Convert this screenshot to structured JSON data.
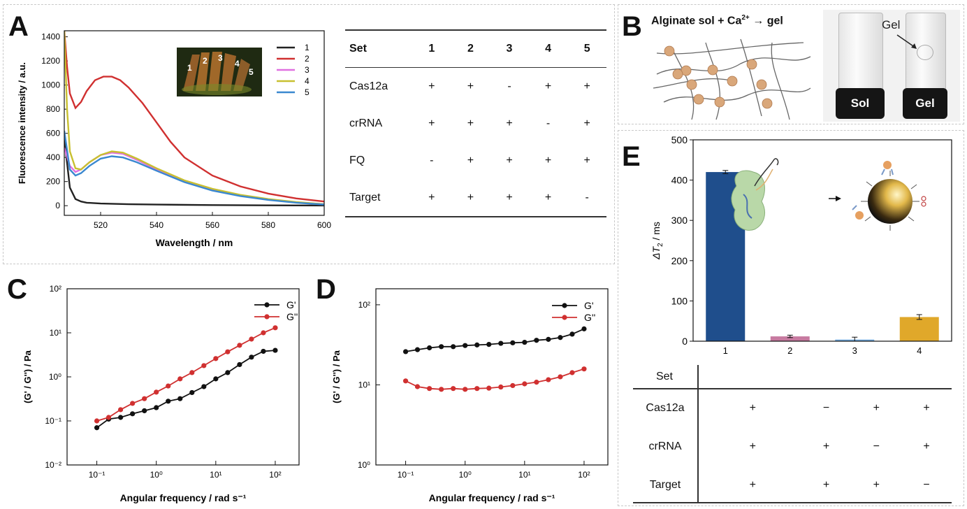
{
  "panels": {
    "A": {
      "label": "A",
      "chart": {
        "type": "line",
        "title": "",
        "xlabel": "Wavelength / nm",
        "ylabel": "Fluorescence intensity / a.u.",
        "xlim": [
          507,
          600
        ],
        "ylim": [
          -80,
          1450
        ],
        "xticks": [
          520,
          540,
          560,
          580,
          600
        ],
        "yticks": [
          0,
          200,
          400,
          600,
          800,
          1000,
          1200,
          1400
        ],
        "legend_position": "top-right",
        "series": [
          {
            "name": "1",
            "color": "#222222",
            "x": [
              507,
              509,
              511,
              513,
              515,
              520,
              530,
              540,
              560,
              580,
              600
            ],
            "y": [
              560,
              150,
              55,
              35,
              25,
              18,
              12,
              9,
              5,
              3,
              2
            ]
          },
          {
            "name": "2",
            "color": "#d03030",
            "x": [
              507,
              508,
              509,
              511,
              513,
              515,
              518,
              521,
              524,
              527,
              530,
              535,
              540,
              545,
              550,
              560,
              570,
              580,
              590,
              600
            ],
            "y": [
              1450,
              1150,
              930,
              810,
              860,
              950,
              1040,
              1070,
              1070,
              1040,
              980,
              850,
              690,
              530,
              400,
              250,
              160,
              100,
              60,
              35
            ]
          },
          {
            "name": "3",
            "color": "#e070e0",
            "x": [
              507,
              509,
              511,
              513,
              516,
              520,
              524,
              528,
              533,
              540,
              550,
              560,
              570,
              580,
              590,
              600
            ],
            "y": [
              480,
              330,
              280,
              300,
              360,
              420,
              440,
              430,
              380,
              300,
              200,
              130,
              85,
              50,
              28,
              12
            ]
          },
          {
            "name": "4",
            "color": "#c8c030",
            "x": [
              507,
              508,
              509,
              511,
              513,
              516,
              520,
              524,
              528,
              533,
              540,
              550,
              560,
              570,
              580,
              590,
              600
            ],
            "y": [
              1450,
              800,
              450,
              310,
              300,
              360,
              420,
              450,
              440,
              390,
              310,
              210,
              140,
              90,
              55,
              30,
              12
            ]
          },
          {
            "name": "5",
            "color": "#3a88d0",
            "x": [
              507,
              509,
              511,
              513,
              516,
              520,
              524,
              528,
              533,
              540,
              550,
              560,
              570,
              580,
              590,
              600
            ],
            "y": [
              620,
              300,
              250,
              270,
              330,
              390,
              410,
              400,
              360,
              290,
              195,
              125,
              80,
              48,
              25,
              10
            ]
          }
        ]
      },
      "inset_tube_labels": [
        "1",
        "2",
        "3",
        "4",
        "5"
      ],
      "table": {
        "header": [
          "Set",
          "1",
          "2",
          "3",
          "4",
          "5"
        ],
        "rows": [
          {
            "label": "Cas12a",
            "cells": [
              "+",
              "+",
              "-",
              "+",
              "+"
            ]
          },
          {
            "label": "crRNA",
            "cells": [
              "+",
              "+",
              "+",
              "-",
              "+"
            ]
          },
          {
            "label": "FQ",
            "cells": [
              "-",
              "+",
              "+",
              "+",
              "+"
            ]
          },
          {
            "label": "Target",
            "cells": [
              "+",
              "+",
              "+",
              "+",
              "-"
            ]
          }
        ]
      }
    },
    "B": {
      "label": "B",
      "title_main": "Alginate sol + Ca",
      "title_sup": "2+",
      "title_arrow": "→",
      "title_end": "gel",
      "vial_labels": [
        "Sol",
        "Gel"
      ],
      "callout": "Gel"
    },
    "C": {
      "label": "C",
      "chart": {
        "type": "line",
        "scale": "log-log",
        "xlabel": "Angular frequency / rad s⁻¹",
        "ylabel": "(G' / G'') / Pa",
        "xlim_log10": [
          -1.5,
          2.4
        ],
        "ylim_log10": [
          -2,
          2
        ],
        "xticks": [
          "10⁻¹",
          "10⁰",
          "10¹",
          "10²"
        ],
        "yticks": [
          "10⁻²",
          "10⁻¹",
          "10⁰",
          "10¹",
          "10²"
        ],
        "legend_position": "top-right",
        "series": [
          {
            "name": "G'",
            "color": "#111111",
            "x": [
              0.1,
              0.158,
              0.251,
              0.398,
              0.631,
              1,
              1.585,
              2.512,
              3.981,
              6.31,
              10,
              15.85,
              25.12,
              39.81,
              63.1,
              100
            ],
            "y": [
              0.07,
              0.11,
              0.12,
              0.145,
              0.17,
              0.2,
              0.28,
              0.32,
              0.44,
              0.6,
              0.9,
              1.25,
              1.9,
              2.8,
              3.8,
              4.0
            ]
          },
          {
            "name": "G''",
            "color": "#d03030",
            "x": [
              0.1,
              0.158,
              0.251,
              0.398,
              0.631,
              1,
              1.585,
              2.512,
              3.981,
              6.31,
              10,
              15.85,
              25.12,
              39.81,
              63.1,
              100
            ],
            "y": [
              0.1,
              0.12,
              0.18,
              0.25,
              0.32,
              0.45,
              0.62,
              0.9,
              1.25,
              1.8,
              2.6,
              3.7,
              5.2,
              7.2,
              10,
              13
            ]
          }
        ]
      }
    },
    "D": {
      "label": "D",
      "chart": {
        "type": "line",
        "scale": "log-log",
        "xlabel": "Angular frequency / rad s⁻¹",
        "ylabel": "(G' / G'') / Pa",
        "xlim_log10": [
          -1.5,
          2.4
        ],
        "ylim_log10": [
          0,
          2.2
        ],
        "xticks": [
          "10⁻¹",
          "10⁰",
          "10¹",
          "10²"
        ],
        "yticks": [
          "10⁰",
          "10¹",
          "10²"
        ],
        "legend_position": "top-right",
        "series": [
          {
            "name": "G'",
            "color": "#111111",
            "x": [
              0.1,
              0.158,
              0.251,
              0.398,
              0.631,
              1,
              1.585,
              2.512,
              3.981,
              6.31,
              10,
              15.85,
              25.12,
              39.81,
              63.1,
              100
            ],
            "y": [
              26,
              27.5,
              29,
              30,
              30,
              31,
              31.5,
              32,
              33,
              33.5,
              34,
              36,
              37,
              39,
              43,
              50
            ]
          },
          {
            "name": "G''",
            "color": "#d03030",
            "x": [
              0.1,
              0.158,
              0.251,
              0.398,
              0.631,
              1,
              1.585,
              2.512,
              3.981,
              6.31,
              10,
              15.85,
              25.12,
              39.81,
              63.1,
              100
            ],
            "y": [
              11.2,
              9.5,
              9.0,
              8.8,
              9.0,
              8.8,
              9.0,
              9.1,
              9.4,
              9.8,
              10.3,
              10.8,
              11.6,
              12.6,
              14.2,
              15.8
            ]
          }
        ]
      }
    },
    "E": {
      "label": "E",
      "chart": {
        "type": "bar",
        "xlabel": "",
        "ylabel_main": "ΔT",
        "ylabel_sub": "2",
        "ylabel_unit": " / ms",
        "categories": [
          "1",
          "2",
          "3",
          "4"
        ],
        "values": [
          420,
          12,
          4,
          60
        ],
        "errors": [
          4,
          3,
          6,
          6
        ],
        "colors": [
          "#1f4e8c",
          "#c77aa0",
          "#6fa8dc",
          "#e0a82a"
        ],
        "ylim": [
          0,
          500
        ],
        "yticks": [
          0,
          100,
          200,
          300,
          400,
          500
        ]
      },
      "table": {
        "header": "Set",
        "rows": [
          {
            "label": "Cas12a",
            "cells": [
              "+",
              "−",
              "+",
              "+"
            ]
          },
          {
            "label": "crRNA",
            "cells": [
              "+",
              "+",
              "−",
              "+"
            ]
          },
          {
            "label": "Target",
            "cells": [
              "+",
              "+",
              "+",
              "−"
            ]
          }
        ]
      }
    }
  }
}
